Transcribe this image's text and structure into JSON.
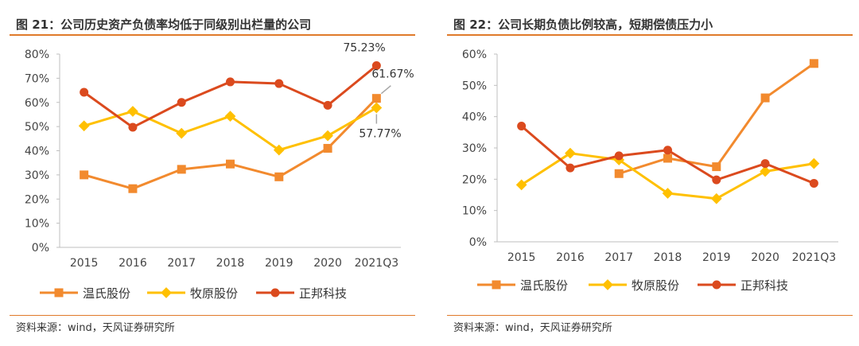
{
  "chart_data": [
    {
      "type": "line",
      "title": "图 21：公司历史资产负债率均低于同级别出栏量的公司",
      "source": "资料来源：wind，天风证券研究所",
      "categories": [
        "2015",
        "2016",
        "2017",
        "2018",
        "2019",
        "2020",
        "2021Q3"
      ],
      "ylim": [
        0,
        80
      ],
      "yticks": [
        "0%",
        "10%",
        "20%",
        "30%",
        "40%",
        "50%",
        "60%",
        "70%",
        "80%"
      ],
      "series": [
        {
          "name": "温氏股份",
          "color": "#F28A2E",
          "marker": "square",
          "values": [
            30.0,
            24.3,
            32.3,
            34.5,
            29.2,
            41.0,
            61.67
          ]
        },
        {
          "name": "牧原股份",
          "color": "#FFC000",
          "marker": "diamond",
          "values": [
            50.3,
            56.3,
            47.2,
            54.3,
            40.3,
            46.2,
            57.77
          ]
        },
        {
          "name": "正邦科技",
          "color": "#DB4A1E",
          "marker": "circle",
          "values": [
            64.2,
            49.7,
            60.0,
            68.5,
            67.8,
            58.8,
            75.23
          ]
        }
      ],
      "annotations": [
        {
          "series": 2,
          "index": 6,
          "text": "75.23%"
        },
        {
          "series": 0,
          "index": 6,
          "text": "61.67%"
        },
        {
          "series": 1,
          "index": 6,
          "text": "57.77%"
        }
      ],
      "legend": "bottom",
      "grid": false
    },
    {
      "type": "line",
      "title": "图 22：公司长期负债比例较高，短期偿债压力小",
      "source": "资料来源：wind，天风证券研究所",
      "categories": [
        "2015",
        "2016",
        "2017",
        "2018",
        "2019",
        "2020",
        "2021Q3"
      ],
      "ylim": [
        0,
        60
      ],
      "yticks": [
        "0%",
        "10%",
        "20%",
        "30%",
        "40%",
        "50%",
        "60%"
      ],
      "series": [
        {
          "name": "温氏股份",
          "color": "#F28A2E",
          "marker": "square",
          "values": [
            null,
            null,
            21.8,
            26.7,
            24.0,
            46.0,
            57.0
          ]
        },
        {
          "name": "牧原股份",
          "color": "#FFC000",
          "marker": "diamond",
          "values": [
            18.2,
            28.3,
            26.2,
            15.5,
            13.8,
            22.5,
            25.0
          ]
        },
        {
          "name": "正邦科技",
          "color": "#DB4A1E",
          "marker": "circle",
          "values": [
            37.0,
            23.6,
            27.5,
            29.3,
            19.8,
            25.0,
            18.7
          ]
        }
      ],
      "annotations": [],
      "legend": "bottom",
      "grid": false
    }
  ]
}
